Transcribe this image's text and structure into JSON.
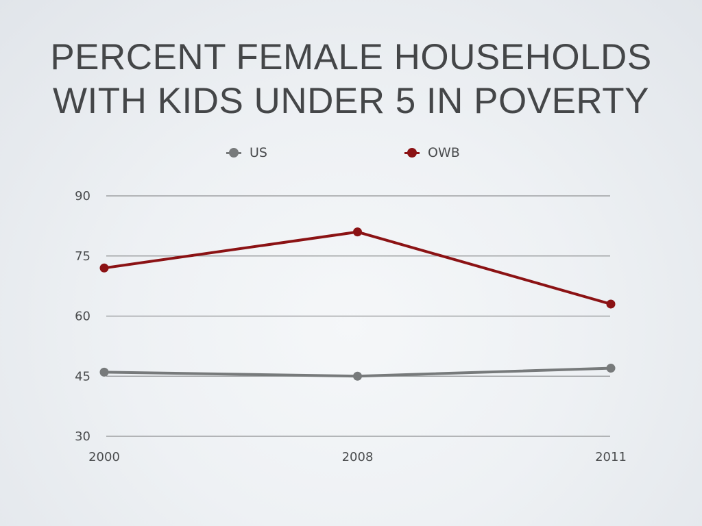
{
  "title_line1": "PERCENT FEMALE HOUSEHOLDS",
  "title_line2": "WITH KIDS UNDER 5 IN POVERTY",
  "chart_data": {
    "type": "line",
    "title": "PERCENT FEMALE HOUSEHOLDS WITH KIDS UNDER 5 IN POVERTY",
    "categories": [
      "2000",
      "2008",
      "2011"
    ],
    "series": [
      {
        "name": "US",
        "color": "#777a7b",
        "values": [
          46,
          45,
          47
        ]
      },
      {
        "name": "OWB",
        "color": "#8b1214",
        "values": [
          72,
          81,
          63
        ]
      }
    ],
    "ylim": [
      30,
      90
    ],
    "yticks": [
      30,
      45,
      60,
      75,
      90
    ],
    "xlabel": "",
    "ylabel": "",
    "grid": true,
    "legend_position": "top"
  }
}
